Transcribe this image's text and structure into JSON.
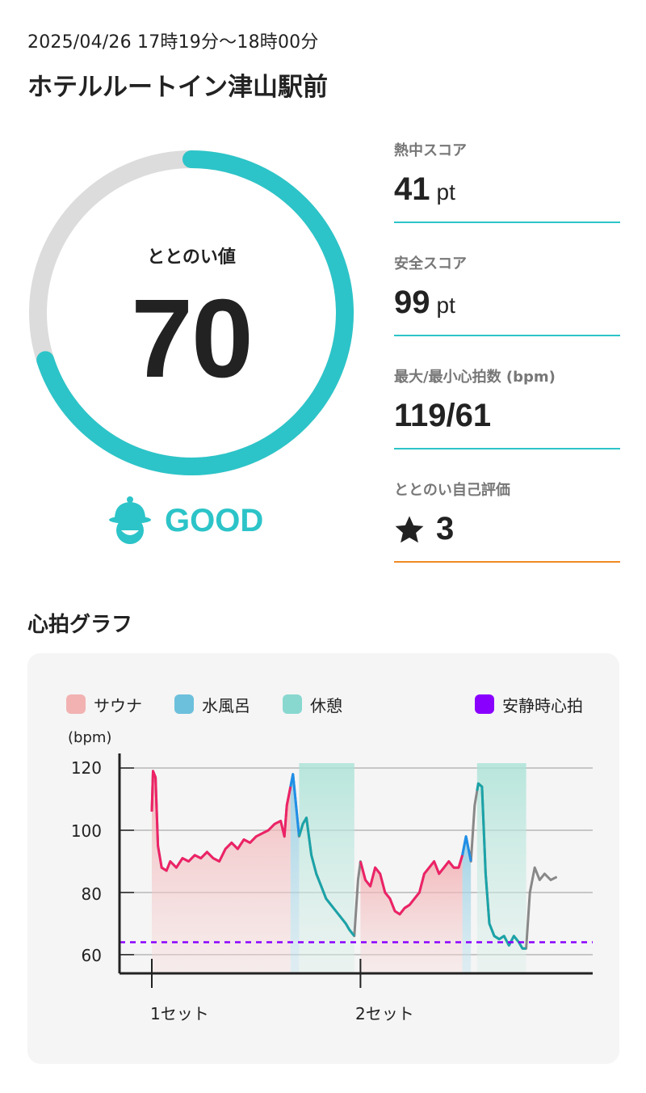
{
  "header": {
    "datetime": "2025/04/26 17時19分〜18時00分",
    "place": "ホテルルートイン津山駅前"
  },
  "score": {
    "label": "ととのい値",
    "value": "70",
    "progress": 0.7,
    "status": "GOOD",
    "status_icon": "sauna-hat-face-icon",
    "accent_color": "#2cc4c8",
    "track_color": "#dcdcdc"
  },
  "metrics": [
    {
      "label": "熱中スコア",
      "value": "41",
      "unit": "pt",
      "line_color": "#2cc4c8"
    },
    {
      "label": "安全スコア",
      "value": "99",
      "unit": "pt",
      "line_color": "#2cc4c8"
    },
    {
      "label": "最大/最小心拍数 (bpm)",
      "value": "119/61",
      "unit": "",
      "line_color": "#2cc4c8"
    },
    {
      "label": "ととのい自己評価",
      "value": "3",
      "unit": "",
      "icon": "star-icon",
      "line_color": "#f08a24"
    }
  ],
  "graph": {
    "title": "心拍グラフ",
    "unit_label": "(bpm)",
    "legend": [
      {
        "label": "サウナ",
        "color": "#f2b2b2"
      },
      {
        "label": "水風呂",
        "color": "#6cc0dc"
      },
      {
        "label": "休憩",
        "color": "#88d8d0"
      },
      {
        "label": "安静時心拍",
        "color": "#8a00ff"
      }
    ],
    "yticks": [
      "120",
      "100",
      "80",
      "60"
    ],
    "xlabels": [
      "1セット",
      "2セット"
    ]
  },
  "chart_data": {
    "type": "line",
    "ylabel": "(bpm)",
    "ylim": [
      54,
      120
    ],
    "yticks": [
      60,
      80,
      100,
      120
    ],
    "xlim": [
      0,
      41
    ],
    "set_labels": [
      {
        "label": "1セット",
        "x": 0
      },
      {
        "label": "2セット",
        "x": 17
      }
    ],
    "resting_hr": 64,
    "phases": [
      {
        "type": "sauna",
        "start": 0,
        "end": 11.3
      },
      {
        "type": "cold",
        "start": 11.3,
        "end": 12.0
      },
      {
        "type": "rest",
        "start": 12.0,
        "end": 16.5
      },
      {
        "type": "sauna",
        "start": 17.0,
        "end": 25.3
      },
      {
        "type": "cold",
        "start": 25.3,
        "end": 26.0
      },
      {
        "type": "rest",
        "start": 26.5,
        "end": 30.5
      }
    ],
    "series": [
      {
        "name": "心拍",
        "points": [
          [
            0.0,
            106
          ],
          [
            0.1,
            119
          ],
          [
            0.3,
            117
          ],
          [
            0.5,
            95
          ],
          [
            0.8,
            88
          ],
          [
            1.2,
            87
          ],
          [
            1.5,
            90
          ],
          [
            2.0,
            88
          ],
          [
            2.5,
            91
          ],
          [
            3.0,
            90
          ],
          [
            3.5,
            92
          ],
          [
            4.0,
            91
          ],
          [
            4.5,
            93
          ],
          [
            5.0,
            91
          ],
          [
            5.5,
            90
          ],
          [
            6.0,
            94
          ],
          [
            6.5,
            96
          ],
          [
            7.0,
            94
          ],
          [
            7.5,
            97
          ],
          [
            8.0,
            96
          ],
          [
            8.5,
            98
          ],
          [
            9.0,
            99
          ],
          [
            9.5,
            100
          ],
          [
            10.0,
            102
          ],
          [
            10.5,
            103
          ],
          [
            10.8,
            98
          ],
          [
            11.0,
            108
          ],
          [
            11.3,
            114
          ],
          [
            11.5,
            118
          ],
          [
            11.8,
            106
          ],
          [
            12.0,
            98
          ],
          [
            12.3,
            102
          ],
          [
            12.6,
            104
          ],
          [
            13.0,
            92
          ],
          [
            13.4,
            86
          ],
          [
            13.8,
            82
          ],
          [
            14.2,
            78
          ],
          [
            14.6,
            76
          ],
          [
            15.0,
            74
          ],
          [
            15.4,
            72
          ],
          [
            15.8,
            70
          ],
          [
            16.1,
            68
          ],
          [
            16.5,
            66
          ],
          [
            16.8,
            84
          ],
          [
            17.0,
            90
          ],
          [
            17.4,
            84
          ],
          [
            17.8,
            82
          ],
          [
            18.2,
            88
          ],
          [
            18.6,
            86
          ],
          [
            19.0,
            80
          ],
          [
            19.4,
            78
          ],
          [
            19.8,
            74
          ],
          [
            20.2,
            73
          ],
          [
            20.6,
            75
          ],
          [
            21.0,
            76
          ],
          [
            21.4,
            78
          ],
          [
            21.8,
            80
          ],
          [
            22.2,
            86
          ],
          [
            22.6,
            88
          ],
          [
            23.0,
            90
          ],
          [
            23.4,
            86
          ],
          [
            23.8,
            88
          ],
          [
            24.2,
            90
          ],
          [
            24.6,
            88
          ],
          [
            25.0,
            88
          ],
          [
            25.3,
            92
          ],
          [
            25.6,
            98
          ],
          [
            26.0,
            90
          ],
          [
            26.3,
            108
          ],
          [
            26.6,
            115
          ],
          [
            26.9,
            114
          ],
          [
            27.2,
            86
          ],
          [
            27.5,
            70
          ],
          [
            27.9,
            66
          ],
          [
            28.3,
            65
          ],
          [
            28.7,
            66
          ],
          [
            29.1,
            63
          ],
          [
            29.5,
            66
          ],
          [
            29.9,
            64
          ],
          [
            30.2,
            62
          ],
          [
            30.5,
            62
          ],
          [
            30.8,
            80
          ],
          [
            31.2,
            88
          ],
          [
            31.6,
            84
          ],
          [
            32.0,
            86
          ],
          [
            32.5,
            84
          ],
          [
            33.0,
            85
          ]
        ]
      }
    ]
  }
}
